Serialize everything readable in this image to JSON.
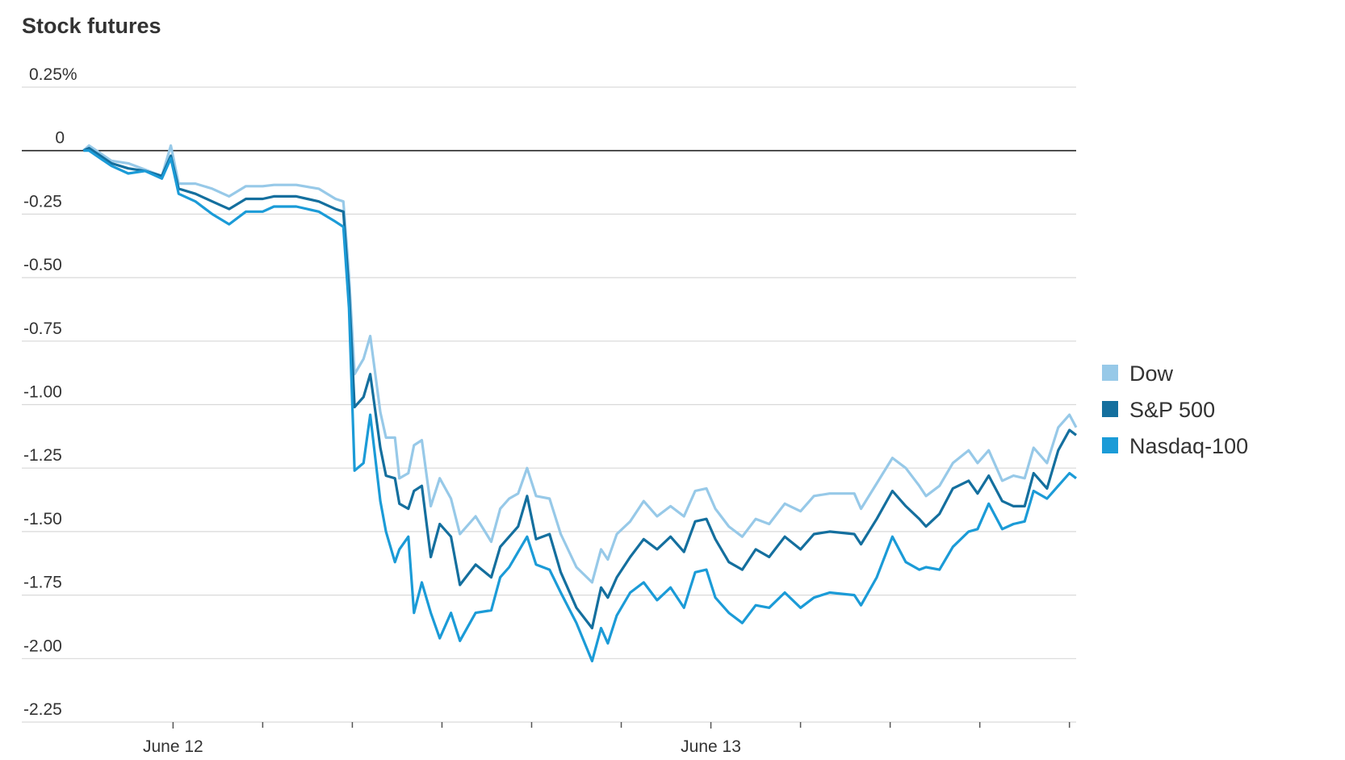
{
  "chart_data": {
    "type": "line",
    "title": "Stock futures",
    "x": [
      -4,
      -3.75,
      -2.75,
      -2,
      -1.25,
      -0.5,
      -0.1,
      0.25,
      1,
      1.75,
      2.5,
      3.25,
      4,
      4.5,
      5.5,
      6.5,
      7.25,
      7.6,
      7.85,
      8.1,
      8.5,
      8.8,
      9.25,
      9.5,
      9.9,
      10.1,
      10.5,
      10.75,
      11.1,
      11.5,
      11.9,
      12.4,
      12.8,
      13.5,
      14.2,
      14.6,
      15,
      15.4,
      15.8,
      16.2,
      16.8,
      17.3,
      18,
      18.7,
      19.1,
      19.4,
      19.8,
      20.4,
      21,
      21.6,
      22.2,
      22.8,
      23.3,
      23.8,
      24.2,
      24.8,
      25.4,
      26,
      26.6,
      27.3,
      28,
      28.6,
      29.3,
      30.4,
      30.7,
      31.4,
      32.1,
      32.7,
      33.3,
      33.6,
      34.2,
      34.8,
      35.5,
      35.9,
      36.4,
      37,
      37.5,
      38,
      38.4,
      39,
      39.5,
      40,
      40.3
    ],
    "series": [
      {
        "name": "Dow",
        "color": "#97c9e8",
        "values": [
          0,
          0.02,
          -0.04,
          -0.05,
          -0.075,
          -0.1,
          0.02,
          -0.13,
          -0.13,
          -0.15,
          -0.18,
          -0.14,
          -0.14,
          -0.135,
          -0.135,
          -0.15,
          -0.19,
          -0.2,
          -0.49,
          -0.88,
          -0.82,
          -0.73,
          -1.03,
          -1.13,
          -1.13,
          -1.29,
          -1.27,
          -1.16,
          -1.14,
          -1.4,
          -1.29,
          -1.37,
          -1.51,
          -1.44,
          -1.54,
          -1.41,
          -1.37,
          -1.35,
          -1.25,
          -1.36,
          -1.37,
          -1.51,
          -1.64,
          -1.7,
          -1.57,
          -1.61,
          -1.51,
          -1.46,
          -1.38,
          -1.44,
          -1.4,
          -1.44,
          -1.34,
          -1.33,
          -1.41,
          -1.48,
          -1.52,
          -1.45,
          -1.47,
          -1.39,
          -1.42,
          -1.36,
          -1.35,
          -1.35,
          -1.41,
          -1.31,
          -1.21,
          -1.25,
          -1.32,
          -1.36,
          -1.32,
          -1.23,
          -1.18,
          -1.23,
          -1.18,
          -1.3,
          -1.28,
          -1.29,
          -1.17,
          -1.23,
          -1.09,
          -1.04,
          -1.09
        ]
      },
      {
        "name": "S&P 500",
        "color": "#146f9e",
        "values": [
          0,
          0.01,
          -0.05,
          -0.07,
          -0.08,
          -0.1,
          -0.02,
          -0.15,
          -0.17,
          -0.2,
          -0.23,
          -0.19,
          -0.19,
          -0.18,
          -0.18,
          -0.2,
          -0.23,
          -0.24,
          -0.55,
          -1.01,
          -0.97,
          -0.88,
          -1.17,
          -1.28,
          -1.29,
          -1.39,
          -1.41,
          -1.34,
          -1.32,
          -1.6,
          -1.47,
          -1.52,
          -1.71,
          -1.63,
          -1.68,
          -1.56,
          -1.52,
          -1.48,
          -1.36,
          -1.53,
          -1.51,
          -1.66,
          -1.8,
          -1.88,
          -1.72,
          -1.76,
          -1.68,
          -1.6,
          -1.53,
          -1.57,
          -1.52,
          -1.58,
          -1.46,
          -1.45,
          -1.53,
          -1.62,
          -1.65,
          -1.57,
          -1.6,
          -1.52,
          -1.57,
          -1.51,
          -1.5,
          -1.51,
          -1.55,
          -1.45,
          -1.34,
          -1.4,
          -1.45,
          -1.48,
          -1.43,
          -1.33,
          -1.3,
          -1.35,
          -1.28,
          -1.38,
          -1.4,
          -1.4,
          -1.27,
          -1.33,
          -1.18,
          -1.1,
          -1.12
        ]
      },
      {
        "name": "Nasdaq-100",
        "color": "#1b9bd7",
        "values": [
          0,
          0,
          -0.06,
          -0.09,
          -0.08,
          -0.11,
          -0.03,
          -0.17,
          -0.2,
          -0.25,
          -0.29,
          -0.24,
          -0.24,
          -0.22,
          -0.22,
          -0.24,
          -0.28,
          -0.3,
          -0.62,
          -1.26,
          -1.23,
          -1.04,
          -1.38,
          -1.5,
          -1.62,
          -1.57,
          -1.52,
          -1.82,
          -1.7,
          -1.82,
          -1.92,
          -1.82,
          -1.93,
          -1.82,
          -1.81,
          -1.68,
          -1.64,
          -1.58,
          -1.52,
          -1.63,
          -1.65,
          -1.74,
          -1.86,
          -2.01,
          -1.88,
          -1.94,
          -1.83,
          -1.74,
          -1.7,
          -1.77,
          -1.72,
          -1.8,
          -1.66,
          -1.65,
          -1.76,
          -1.82,
          -1.86,
          -1.79,
          -1.8,
          -1.74,
          -1.8,
          -1.76,
          -1.74,
          -1.75,
          -1.79,
          -1.68,
          -1.52,
          -1.62,
          -1.65,
          -1.64,
          -1.65,
          -1.56,
          -1.5,
          -1.49,
          -1.39,
          -1.49,
          -1.47,
          -1.46,
          -1.34,
          -1.37,
          -1.32,
          -1.27,
          -1.29
        ]
      }
    ],
    "xlim": [
      -6.75,
      40.3
    ],
    "xticks": [
      {
        "value": 0,
        "label": "June 12"
      },
      {
        "value": 24,
        "label": "June 13"
      }
    ],
    "xminorticks": [
      4,
      8,
      12,
      16,
      20,
      28,
      32,
      36,
      40
    ],
    "ylim": [
      -2.25,
      0.25
    ],
    "yticks": [
      {
        "value": 0.25,
        "label": "0.25%"
      },
      0,
      {
        "value": -0.25,
        "label": "-0.25"
      },
      {
        "value": -0.5,
        "label": "-0.50"
      },
      {
        "value": -0.75,
        "label": "-0.75"
      },
      {
        "value": -1,
        "label": "-1.00"
      },
      {
        "value": -1.25,
        "label": "-1.25"
      },
      {
        "value": -1.5,
        "label": "-1.50"
      },
      {
        "value": -1.75,
        "label": "-1.75"
      },
      {
        "value": -2,
        "label": "-2.00"
      },
      {
        "value": -2.25,
        "label": "-2.25"
      }
    ],
    "grid": true,
    "legend": "right"
  }
}
